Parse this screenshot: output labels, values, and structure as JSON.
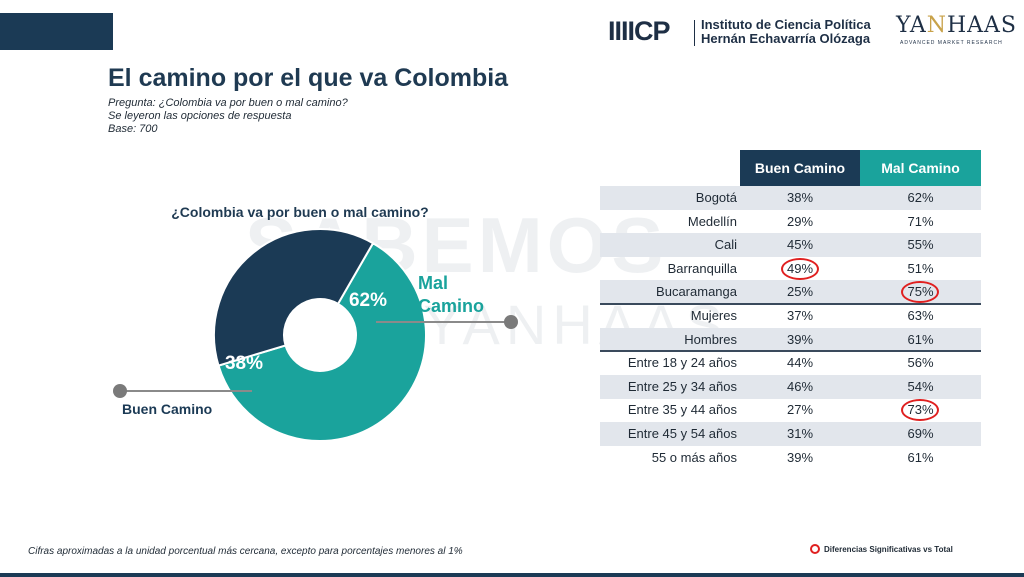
{
  "header": {
    "icp_mark": "IIIICP",
    "icp_line1": "Instituto de Ciencia Política",
    "icp_line2": "Hernán Echavarría Olózaga",
    "yanhaas_mark_a": "YA",
    "yanhaas_mark_b": "N",
    "yanhaas_mark_c": "HAAS",
    "yanhaas_sub": "ADVANCED MARKET RESEARCH"
  },
  "title": "El camino por el que va Colombia",
  "question": "Pregunta: ¿Colombia va por buen o mal camino?",
  "note": "Se leyeron las opciones de respuesta",
  "base": "Base: 700",
  "watermark_line1": "SABEMOS",
  "watermark_line2": "ICP—YANHAAS",
  "colors": {
    "navy": "#1b3a55",
    "teal": "#1aa39c",
    "highlight": "#e02020"
  },
  "chart_data": [
    {
      "type": "pie",
      "title": "¿Colombia va por buen o mal camino?",
      "slices": [
        {
          "name": "Buen Camino",
          "value": 38,
          "label": "38%",
          "color": "#1b3a55"
        },
        {
          "name": "Mal Camino",
          "value": 62,
          "label": "62%",
          "color": "#1aa39c"
        }
      ],
      "callout_labels": {
        "buen": "Buen Camino",
        "mal_line1": "Mal",
        "mal_line2": "Camino"
      }
    },
    {
      "type": "table",
      "columns": [
        "Buen Camino",
        "Mal Camino"
      ],
      "rows": [
        {
          "label": "Bogotá",
          "buen": "38%",
          "mal": "62%"
        },
        {
          "label": "Medellín",
          "buen": "29%",
          "mal": "71%"
        },
        {
          "label": "Cali",
          "buen": "45%",
          "mal": "55%"
        },
        {
          "label": "Barranquilla",
          "buen": "49%",
          "mal": "51%",
          "highlight": "buen"
        },
        {
          "label": "Bucaramanga",
          "buen": "25%",
          "mal": "75%",
          "highlight": "mal"
        },
        {
          "label": "Mujeres",
          "buen": "37%",
          "mal": "63%"
        },
        {
          "label": "Hombres",
          "buen": "39%",
          "mal": "61%"
        },
        {
          "label": "Entre 18 y 24 años",
          "buen": "44%",
          "mal": "56%"
        },
        {
          "label": "Entre 25 y 34 años",
          "buen": "46%",
          "mal": "54%"
        },
        {
          "label": "Entre 35 y 44 años",
          "buen": "27%",
          "mal": "73%",
          "highlight": "mal"
        },
        {
          "label": "Entre 45 y 54 años",
          "buen": "31%",
          "mal": "69%"
        },
        {
          "label": "55 o más años",
          "buen": "39%",
          "mal": "61%"
        }
      ],
      "group_breaks_after": [
        4,
        6
      ]
    }
  ],
  "footnote": "Cifras aproximadas a la unidad porcentual más cercana, excepto para porcentajes menores al 1%",
  "legend_label": "Diferencias Significativas vs Total"
}
